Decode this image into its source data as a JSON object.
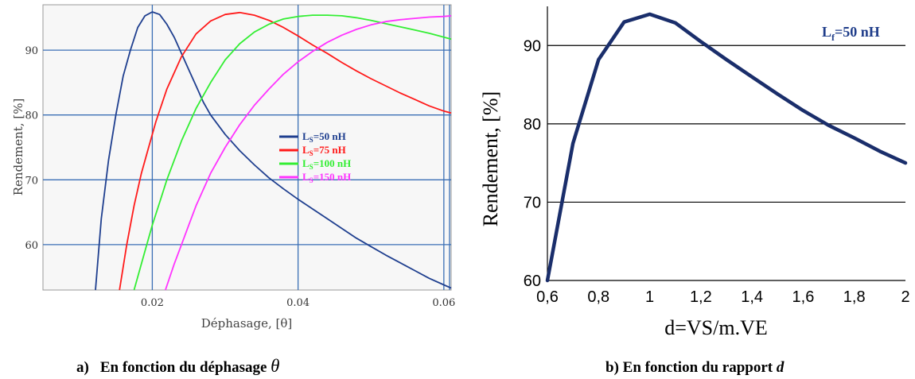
{
  "chart_data": [
    {
      "type": "line",
      "xlabel": "Déphasage, [θ]",
      "ylabel": "Rendement, [%]",
      "xlim": [
        0.005,
        0.061
      ],
      "ylim": [
        53,
        97
      ],
      "x_ticks": [
        "0.02",
        "0.04",
        "0.06"
      ],
      "y_ticks": [
        "60",
        "70",
        "80",
        "90"
      ],
      "x_tick_values": [
        0.02,
        0.04,
        0.06
      ],
      "y_tick_values": [
        60,
        70,
        80,
        90
      ],
      "grid": true,
      "legend_position": "center-right",
      "series": [
        {
          "name": "L",
          "sub": "S",
          "suffix": "=50 nH",
          "color": "#1f3f8f",
          "x": [
            0.0122,
            0.013,
            0.014,
            0.015,
            0.016,
            0.017,
            0.018,
            0.019,
            0.02,
            0.021,
            0.022,
            0.023,
            0.024,
            0.025,
            0.026,
            0.027,
            0.028,
            0.03,
            0.032,
            0.034,
            0.036,
            0.038,
            0.04,
            0.042,
            0.044,
            0.046,
            0.048,
            0.05,
            0.052,
            0.054,
            0.056,
            0.058,
            0.06,
            0.061
          ],
          "y": [
            53,
            64,
            73,
            80,
            86,
            90,
            93.5,
            95.3,
            95.9,
            95.5,
            94,
            92,
            89.5,
            87,
            84.5,
            82,
            80,
            77,
            74.5,
            72.3,
            70.3,
            68.6,
            67,
            65.5,
            64,
            62.5,
            61,
            59.7,
            58.4,
            57.2,
            56,
            54.8,
            53.8,
            53.3
          ]
        },
        {
          "name": "L",
          "sub": "S",
          "suffix": "=75 nH",
          "color": "#ff1a1a",
          "x": [
            0.0155,
            0.0165,
            0.0175,
            0.0185,
            0.0195,
            0.0205,
            0.022,
            0.024,
            0.026,
            0.028,
            0.03,
            0.032,
            0.034,
            0.036,
            0.038,
            0.04,
            0.042,
            0.044,
            0.046,
            0.048,
            0.05,
            0.052,
            0.054,
            0.056,
            0.058,
            0.06,
            0.061
          ],
          "y": [
            53,
            60,
            66,
            71,
            75,
            79,
            84,
            89,
            92.5,
            94.5,
            95.5,
            95.8,
            95.4,
            94.6,
            93.5,
            92.2,
            90.8,
            89.5,
            88.1,
            86.8,
            85.6,
            84.5,
            83.4,
            82.4,
            81.4,
            80.6,
            80.3
          ]
        },
        {
          "name": "L",
          "sub": "S",
          "suffix": "=100 nH",
          "color": "#33ee33",
          "x": [
            0.0175,
            0.019,
            0.02,
            0.021,
            0.022,
            0.024,
            0.026,
            0.028,
            0.03,
            0.032,
            0.034,
            0.036,
            0.038,
            0.04,
            0.042,
            0.044,
            0.046,
            0.048,
            0.05,
            0.052,
            0.054,
            0.056,
            0.058,
            0.06,
            0.061
          ],
          "y": [
            53,
            59,
            63,
            66.5,
            70,
            76,
            81,
            85,
            88.5,
            91,
            92.8,
            94,
            94.8,
            95.2,
            95.4,
            95.4,
            95.3,
            95,
            94.6,
            94.1,
            93.6,
            93.1,
            92.6,
            92,
            91.7
          ]
        },
        {
          "name": "L",
          "sub": "S",
          "suffix": "=150 nH",
          "color": "#ff33ff",
          "x": [
            0.0218,
            0.023,
            0.024,
            0.025,
            0.026,
            0.028,
            0.03,
            0.032,
            0.034,
            0.036,
            0.038,
            0.04,
            0.042,
            0.044,
            0.046,
            0.048,
            0.05,
            0.052,
            0.054,
            0.056,
            0.058,
            0.06,
            0.061
          ],
          "y": [
            53,
            57,
            60,
            63,
            66,
            71,
            75,
            78.5,
            81.5,
            84,
            86.3,
            88.2,
            89.8,
            91.2,
            92.3,
            93.2,
            93.9,
            94.4,
            94.7,
            94.9,
            95.1,
            95.2,
            95.3
          ]
        }
      ]
    },
    {
      "type": "line",
      "xlabel": "d=VS/m.VE",
      "ylabel": "Rendement,  [%]",
      "xlim": [
        0.6,
        2.0
      ],
      "ylim": [
        60,
        95
      ],
      "x_ticks": [
        "0,6",
        "0,8",
        "1",
        "1,2",
        "1,4",
        "1,6",
        "1,8",
        "2"
      ],
      "y_ticks": [
        "60",
        "70",
        "80",
        "90"
      ],
      "x_tick_values": [
        0.6,
        0.8,
        1.0,
        1.2,
        1.4,
        1.6,
        1.8,
        2.0
      ],
      "y_tick_values": [
        60,
        70,
        80,
        90
      ],
      "grid": true,
      "annotation": {
        "main": "L",
        "sub": "f",
        "rest": "=50 nH"
      },
      "series": [
        {
          "color": "#1a2e6b",
          "x": [
            0.6,
            0.7,
            0.8,
            0.9,
            1.0,
            1.1,
            1.2,
            1.3,
            1.4,
            1.5,
            1.6,
            1.7,
            1.8,
            1.9,
            2.0
          ],
          "y": [
            60,
            77.5,
            88.2,
            93,
            94,
            92.9,
            90.5,
            88.2,
            86,
            83.8,
            81.7,
            79.8,
            78.2,
            76.5,
            75
          ]
        }
      ]
    }
  ],
  "captions": {
    "a_prefix": "a)",
    "a_text": "En fonction du déphasage ",
    "a_symbol": "θ",
    "b_text": "b) En fonction du rapport ",
    "b_symbol": "d"
  }
}
